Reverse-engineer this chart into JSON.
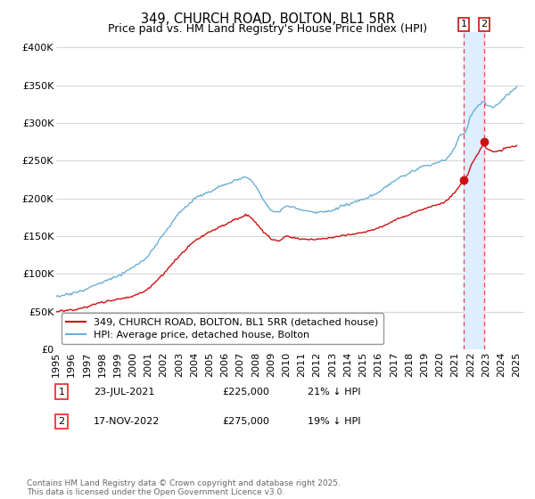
{
  "title": "349, CHURCH ROAD, BOLTON, BL1 5RR",
  "subtitle": "Price paid vs. HM Land Registry's House Price Index (HPI)",
  "ylim": [
    0,
    420000
  ],
  "yticks": [
    0,
    50000,
    100000,
    150000,
    200000,
    250000,
    300000,
    350000,
    400000
  ],
  "ytick_labels": [
    "£0",
    "£50K",
    "£100K",
    "£150K",
    "£200K",
    "£250K",
    "£300K",
    "£350K",
    "£400K"
  ],
  "hpi_color": "#6baed6",
  "price_color": "#cc1111",
  "vline_color": "#ee2222",
  "shade_color": "#ddeeff",
  "sale1_x": 2021.558,
  "sale2_x": 2022.875,
  "sale1_date": "23-JUL-2021",
  "sale1_price": 225000,
  "sale1_pct": "21% ↓ HPI",
  "sale2_date": "17-NOV-2022",
  "sale2_price": 275000,
  "sale2_pct": "19% ↓ HPI",
  "legend_line1": "349, CHURCH ROAD, BOLTON, BL1 5RR (detached house)",
  "legend_line2": "HPI: Average price, detached house, Bolton",
  "footnote": "Contains HM Land Registry data © Crown copyright and database right 2025.\nThis data is licensed under the Open Government Licence v3.0.",
  "bg_color": "#ffffff",
  "grid_color": "#cccccc",
  "title_fontsize": 10.5,
  "subtitle_fontsize": 9,
  "tick_fontsize": 8,
  "legend_fontsize": 8,
  "footnote_fontsize": 6.5
}
